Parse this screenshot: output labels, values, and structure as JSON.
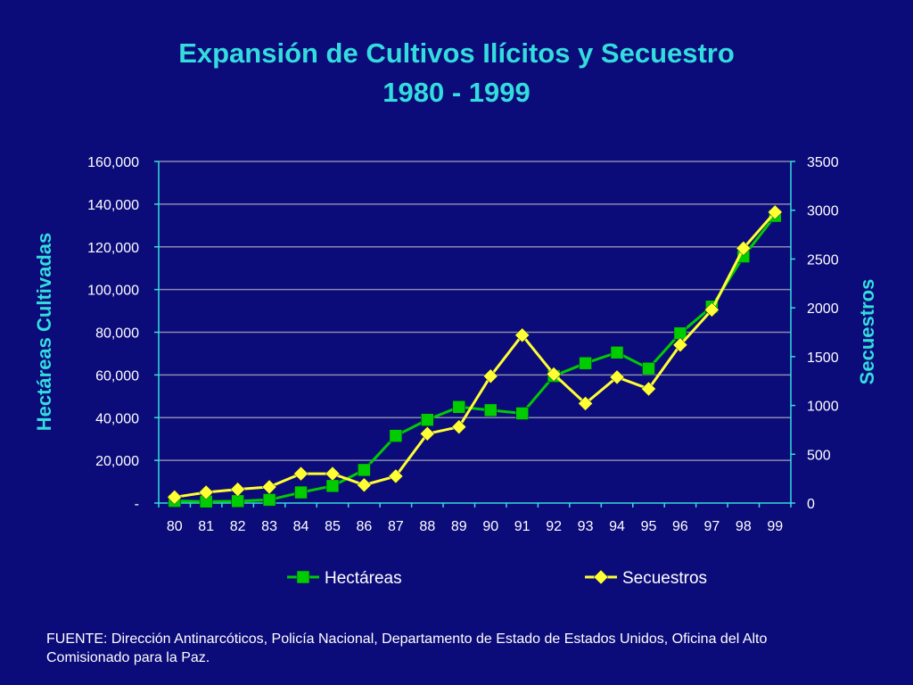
{
  "title": "Expansión de Cultivos Ilícitos y Secuestro",
  "subtitle": "1980 - 1999",
  "footer": "FUENTE: Dirección Antinarcóticos, Policía Nacional, Departamento de Estado de Estados Unidos, Oficina del Alto Comisionado para la Paz.",
  "colors": {
    "background": "#0b0b7a",
    "title": "#33dddd",
    "axis": "#33dddd",
    "hectareas": "#00cc00",
    "secuestros": "#ffff33"
  },
  "chart_data": {
    "type": "line",
    "title": "Expansión de Cultivos Ilícitos y Secuestro",
    "subtitle": "1980 - 1999",
    "categories": [
      "80",
      "81",
      "82",
      "83",
      "84",
      "85",
      "86",
      "87",
      "88",
      "89",
      "90",
      "91",
      "92",
      "93",
      "94",
      "95",
      "96",
      "97",
      "98",
      "99"
    ],
    "ylabel": "Hectáreas Cultivadas",
    "y2label": "Secuestros",
    "ylim": [
      0,
      160000
    ],
    "y2lim": [
      0,
      3500
    ],
    "yticks": [
      "-",
      "20,000",
      "40,000",
      "60,000",
      "80,000",
      "100,000",
      "120,000",
      "140,000",
      "160,000"
    ],
    "y2ticks": [
      "0",
      "500",
      "1000",
      "1500",
      "2000",
      "2500",
      "3000",
      "3500"
    ],
    "grid": true,
    "legend_position": "bottom",
    "series": [
      {
        "name": "Hectáreas",
        "axis": "left",
        "marker": "square",
        "color": "#00cc00",
        "values": [
          1000,
          700,
          900,
          1500,
          5000,
          8000,
          15500,
          31500,
          39000,
          45000,
          43500,
          42000,
          59500,
          65500,
          70500,
          63000,
          79500,
          92000,
          115500,
          134500
        ]
      },
      {
        "name": "Secuestros",
        "axis": "right",
        "marker": "diamond",
        "color": "#ffff33",
        "values": [
          60,
          110,
          140,
          165,
          300,
          300,
          185,
          275,
          710,
          780,
          1300,
          1720,
          1320,
          1020,
          1290,
          1170,
          1620,
          1980,
          2610,
          2980
        ]
      }
    ]
  }
}
